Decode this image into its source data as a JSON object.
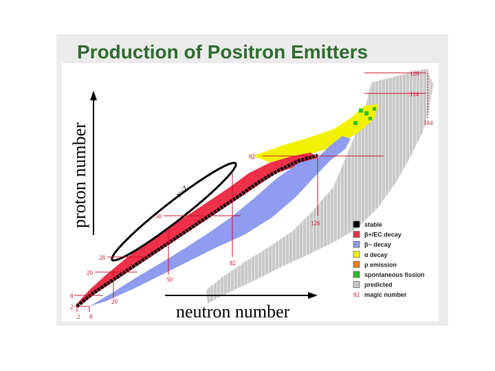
{
  "title": "Production of Positron Emitters",
  "axes": {
    "x_label": "neutron number",
    "y_label": "proton number"
  },
  "nz_label": "N=Z",
  "magic_numbers": {
    "proton_labels": [
      "2",
      "8",
      "20",
      "28",
      "50",
      "82",
      "114",
      "126"
    ],
    "neutron_labels": [
      "2",
      "8",
      "20",
      "50",
      "82",
      "126",
      "184"
    ]
  },
  "legend": [
    {
      "label": "stable",
      "color": "#000000"
    },
    {
      "label": "β+/EC decay",
      "color": "#ee3048"
    },
    {
      "label": "β− decay",
      "color": "#8f9cf0"
    },
    {
      "label": "α decay",
      "color": "#f2f200"
    },
    {
      "label": "p emission",
      "color": "#f07e1e"
    },
    {
      "label": "spontaneous fission",
      "color": "#2cc12c"
    },
    {
      "label": "predicted",
      "color": "#c8c8c8"
    },
    {
      "label": "magic number",
      "color": "#c8102e",
      "marker_text": "82"
    }
  ]
}
